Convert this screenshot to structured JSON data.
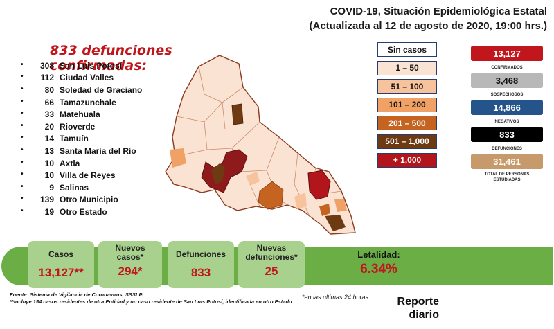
{
  "header": {
    "title": "COVID-19, Situación Epidemiológica Estatal",
    "subtitle": "(Actualizada al 12 de agosto de 2020, 19:00 hrs.)"
  },
  "deaths_title": "833 defunciones confirmadas:",
  "deaths_list": [
    {
      "count": "308",
      "place": "San Luis Potosí"
    },
    {
      "count": "112",
      "place": "Ciudad Valles"
    },
    {
      "count": "80",
      "place": "Soledad de Graciano"
    },
    {
      "count": "66",
      "place": "Tamazunchale"
    },
    {
      "count": "33",
      "place": "Matehuala"
    },
    {
      "count": "20",
      "place": "Rioverde"
    },
    {
      "count": "14",
      "place": "Tamuín"
    },
    {
      "count": "13",
      "place": "Santa María del Río"
    },
    {
      "count": "10",
      "place": "Axtla"
    },
    {
      "count": "10",
      "place": "Villa de Reyes"
    },
    {
      "count": "9",
      "place": "Salinas"
    },
    {
      "count": "139",
      "place": "Otro Municipio"
    },
    {
      "count": "19",
      "place": "Otro Estado"
    }
  ],
  "legend": [
    {
      "label": "Sin casos",
      "color": "#ffffff",
      "text_color": "#111111"
    },
    {
      "label": "1 – 50",
      "color": "#fbe3d3",
      "text_color": "#111111"
    },
    {
      "label": "51 – 100",
      "color": "#f7c39c",
      "text_color": "#111111"
    },
    {
      "label": "101 – 200",
      "color": "#f0a266",
      "text_color": "#111111"
    },
    {
      "label": "201 – 500",
      "color": "#c56420",
      "text_color": "#ffffff"
    },
    {
      "label": "501 – 1,000",
      "color": "#6e3a12",
      "text_color": "#ffffff"
    },
    {
      "label": "+ 1,000",
      "color": "#b2161c",
      "text_color": "#ffffff"
    }
  ],
  "stats": [
    {
      "value": "13,127",
      "label": "CONFIRMADOS",
      "color": "#c0161c",
      "text_color": "#ffffff"
    },
    {
      "value": "3,468",
      "label": "SOSPECHOSOS",
      "color": "#b8b8b8",
      "text_color": "#111111"
    },
    {
      "value": "14,866",
      "label": "NEGATIVOS",
      "color": "#24548a",
      "text_color": "#ffffff"
    },
    {
      "value": "833",
      "label": "DEFUNCIONES",
      "color": "#000000",
      "text_color": "#ffffff"
    },
    {
      "value": "31,461",
      "label": "TOTAL DE PERSONAS ESTUDIADAS",
      "color": "#c79a6b",
      "text_color": "#ffffff"
    }
  ],
  "banner": {
    "casos_label": "Casos",
    "casos_value": "13,127**",
    "nuevos_casos_label": "Nuevos casos*",
    "nuevos_casos_value": "294*",
    "defunciones_label": "Defunciones",
    "defunciones_value": "833",
    "nuevas_defunciones_label": "Nuevas defunciones*",
    "nuevas_defunciones_value": "25",
    "letalidad_label": "Letalidad:",
    "letalidad_value": "6.34%"
  },
  "footnotes": {
    "fuente": "Fuente: Sistema de Vigilancia de Coronavirus, SSSLP.",
    "note2": "**Incluye 154 casos residentes de otra Entidad y un caso residente de San Luis Potosí, identificada en otro Estado",
    "note1": "*en las ultimas 24 horas."
  },
  "report": {
    "line1": "Reporte",
    "line2": "diario"
  },
  "colors": {
    "banner_green": "#6aae45",
    "cell_green": "#a9d18e",
    "accent_red": "#c0161c"
  }
}
